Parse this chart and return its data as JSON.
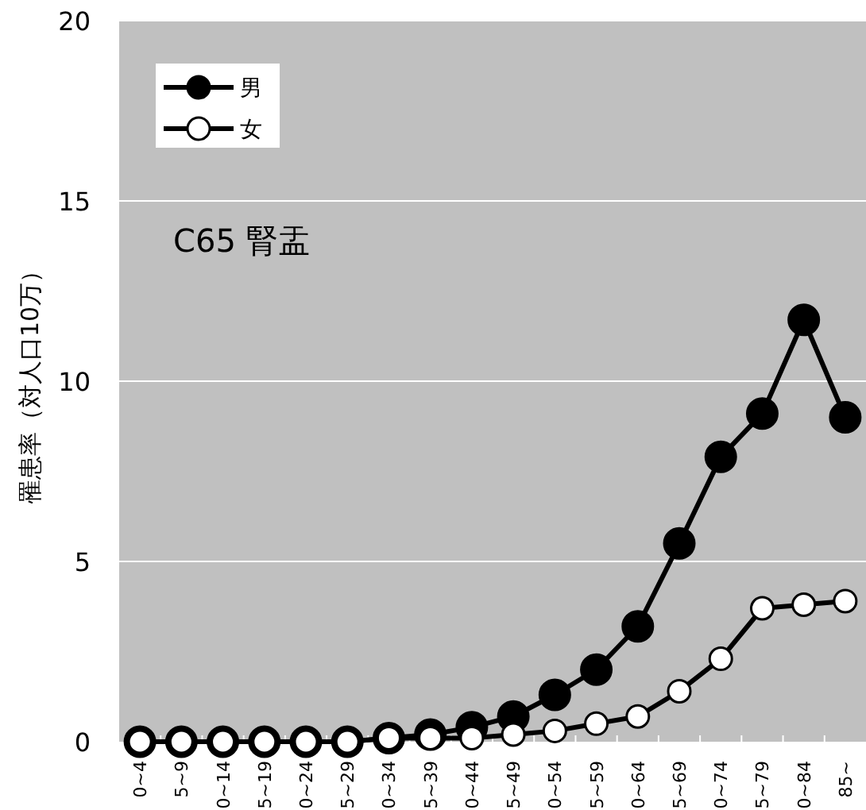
{
  "chart_data": {
    "type": "line",
    "ylabel": "罹患率（対人口10万）",
    "annotations": [
      "C65 腎盂"
    ],
    "categories": [
      "0~4",
      "5~9",
      "0~14",
      "5~19",
      "0~24",
      "5~29",
      "0~34",
      "5~39",
      "0~44",
      "5~49",
      "0~54",
      "5~59",
      "0~64",
      "5~69",
      "0~74",
      "5~79",
      "0~84",
      "85~"
    ],
    "series": [
      {
        "name": "男",
        "color": "#000000",
        "marker": "circle",
        "values": [
          0,
          0,
          0,
          0,
          0,
          0,
          0.1,
          0.2,
          0.4,
          0.7,
          1.3,
          2.0,
          3.2,
          5.5,
          7.9,
          9.1,
          11.7,
          9.0
        ]
      },
      {
        "name": "女",
        "color": "#ffffff",
        "marker": "circle",
        "values": [
          0,
          0,
          0,
          0,
          0,
          0,
          0.1,
          0.1,
          0.1,
          0.2,
          0.3,
          0.5,
          0.7,
          1.4,
          2.3,
          3.7,
          3.8,
          3.9
        ]
      }
    ],
    "ylim": [
      0,
      20
    ],
    "yticks": [
      0,
      5,
      10,
      15,
      20
    ],
    "grid": "y",
    "legend": "top left"
  }
}
